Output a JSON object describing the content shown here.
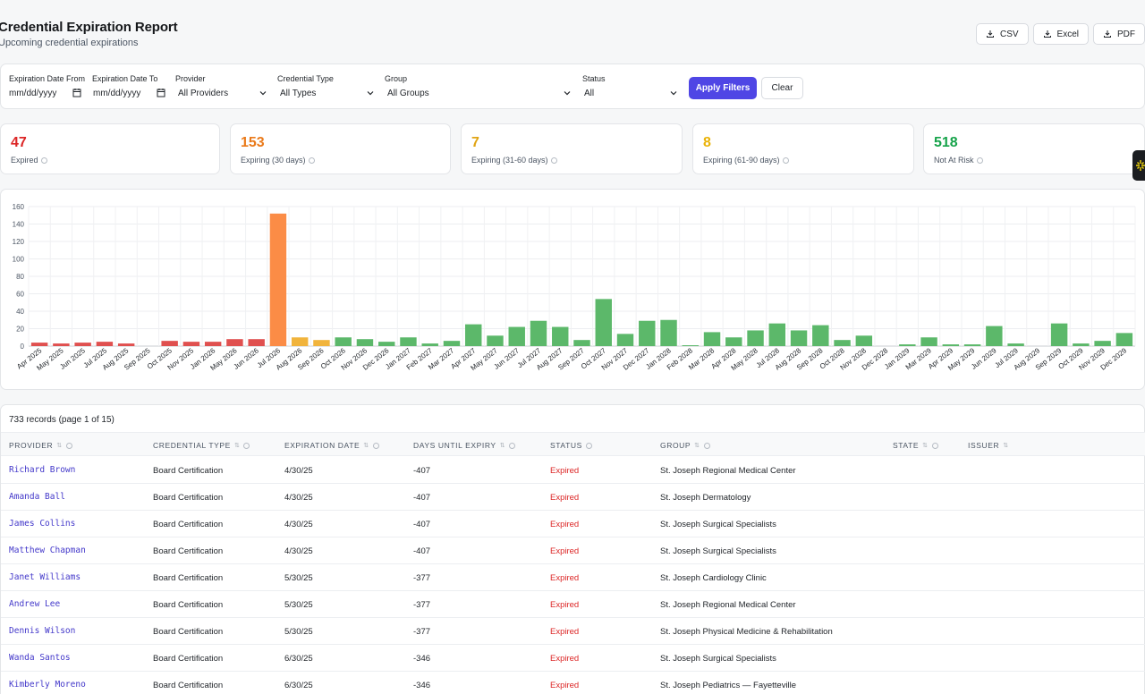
{
  "header": {
    "title": "Credential Expiration Report",
    "subtitle": "Upcoming credential expirations",
    "exports": [
      "CSV",
      "Excel",
      "PDF"
    ]
  },
  "filters": {
    "date_from": {
      "label": "Expiration Date From",
      "value": "mm/dd/yyyy"
    },
    "date_to": {
      "label": "Expiration Date To",
      "value": "mm/dd/yyyy"
    },
    "provider": {
      "label": "Provider",
      "value": "All Providers"
    },
    "credential_type": {
      "label": "Credential Type",
      "value": "All Types"
    },
    "group": {
      "label": "Group",
      "value": "All Groups"
    },
    "status": {
      "label": "Status",
      "value": "All"
    },
    "apply_label": "Apply Filters",
    "clear_label": "Clear"
  },
  "stats": [
    {
      "value": "47",
      "label": "Expired",
      "color": "#dc2626"
    },
    {
      "value": "153",
      "label": "Expiring (30 days)",
      "color": "#ea7a1a"
    },
    {
      "value": "7",
      "label": "Expiring (31-60 days)",
      "color": "#e0a412"
    },
    {
      "value": "8",
      "label": "Expiring (61-90 days)",
      "color": "#eab308"
    },
    {
      "value": "518",
      "label": "Not At Risk",
      "color": "#16a34a"
    }
  ],
  "chart_data": {
    "type": "bar",
    "title": "",
    "xlabel": "",
    "ylabel": "",
    "ylim": [
      0,
      160
    ],
    "yticks": [
      0,
      20,
      40,
      60,
      80,
      100,
      120,
      140,
      160
    ],
    "grid": true,
    "legend": "none",
    "categories": [
      "Apr 2025",
      "May 2025",
      "Jun 2025",
      "Jul 2025",
      "Aug 2025",
      "Sep 2025",
      "Oct 2025",
      "Nov 2025",
      "Jan 2026",
      "May 2026",
      "Jun 2026",
      "Jul 2026",
      "Aug 2026",
      "Sep 2026",
      "Oct 2026",
      "Nov 2026",
      "Dec 2026",
      "Jan 2027",
      "Feb 2027",
      "Mar 2027",
      "Apr 2027",
      "May 2027",
      "Jun 2027",
      "Jul 2027",
      "Aug 2027",
      "Sep 2027",
      "Oct 2027",
      "Nov 2027",
      "Dec 2027",
      "Jan 2028",
      "Feb 2028",
      "Mar 2028",
      "Apr 2028",
      "May 2028",
      "Jul 2028",
      "Aug 2028",
      "Sep 2028",
      "Oct 2028",
      "Nov 2028",
      "Dec 2028",
      "Jan 2029",
      "Mar 2029",
      "Apr 2029",
      "May 2029",
      "Jun 2029",
      "Jul 2029",
      "Aug 2029",
      "Sep 2029",
      "Oct 2029",
      "Nov 2029",
      "Dec 2029"
    ],
    "values": [
      4,
      3,
      4,
      5,
      3,
      0,
      6,
      5,
      5,
      8,
      8,
      152,
      10,
      7,
      10,
      8,
      5,
      10,
      3,
      6,
      25,
      12,
      22,
      29,
      22,
      7,
      54,
      14,
      29,
      30,
      1,
      16,
      10,
      18,
      26,
      18,
      24,
      7,
      12,
      0,
      2,
      10,
      2,
      2,
      23,
      3,
      0,
      26,
      3,
      6,
      15
    ],
    "bar_status": [
      "expired",
      "expired",
      "expired",
      "expired",
      "expired",
      "expired",
      "expired",
      "expired",
      "expired",
      "expired",
      "expired",
      "expiring-30",
      "expiring-later",
      "expiring-later",
      "ok",
      "ok",
      "ok",
      "ok",
      "ok",
      "ok",
      "ok",
      "ok",
      "ok",
      "ok",
      "ok",
      "ok",
      "ok",
      "ok",
      "ok",
      "ok",
      "ok",
      "ok",
      "ok",
      "ok",
      "ok",
      "ok",
      "ok",
      "ok",
      "ok",
      "ok",
      "ok",
      "ok",
      "ok",
      "ok",
      "ok",
      "ok",
      "ok",
      "ok",
      "ok",
      "ok",
      "ok"
    ],
    "status_colors": {
      "expired": "#e0504f",
      "expiring-30": "#fb8c46",
      "expiring-later": "#f1b43c",
      "ok": "#5cb86a"
    }
  },
  "table": {
    "records_text": "733 records (page 1 of 15)",
    "columns": [
      "PROVIDER",
      "CREDENTIAL TYPE",
      "EXPIRATION DATE",
      "DAYS UNTIL EXPIRY",
      "STATUS",
      "GROUP",
      "STATE",
      "ISSUER"
    ],
    "rows": [
      {
        "provider": "Richard Brown",
        "type": "Board Certification",
        "date": "4/30/25",
        "days": "-407",
        "status": "Expired",
        "group": "St. Joseph Regional Medical Center"
      },
      {
        "provider": "Amanda Ball",
        "type": "Board Certification",
        "date": "4/30/25",
        "days": "-407",
        "status": "Expired",
        "group": "St. Joseph Dermatology"
      },
      {
        "provider": "James Collins",
        "type": "Board Certification",
        "date": "4/30/25",
        "days": "-407",
        "status": "Expired",
        "group": "St. Joseph Surgical Specialists"
      },
      {
        "provider": "Matthew Chapman",
        "type": "Board Certification",
        "date": "4/30/25",
        "days": "-407",
        "status": "Expired",
        "group": "St. Joseph Surgical Specialists"
      },
      {
        "provider": "Janet Williams",
        "type": "Board Certification",
        "date": "5/30/25",
        "days": "-377",
        "status": "Expired",
        "group": "St. Joseph Cardiology Clinic"
      },
      {
        "provider": "Andrew Lee",
        "type": "Board Certification",
        "date": "5/30/25",
        "days": "-377",
        "status": "Expired",
        "group": "St. Joseph Regional Medical Center"
      },
      {
        "provider": "Dennis Wilson",
        "type": "Board Certification",
        "date": "5/30/25",
        "days": "-377",
        "status": "Expired",
        "group": "St. Joseph Physical Medicine & Rehabilitation"
      },
      {
        "provider": "Wanda Santos",
        "type": "Board Certification",
        "date": "6/30/25",
        "days": "-346",
        "status": "Expired",
        "group": "St. Joseph Surgical Specialists"
      },
      {
        "provider": "Kimberly Moreno",
        "type": "Board Certification",
        "date": "6/30/25",
        "days": "-346",
        "status": "Expired",
        "group": "St. Joseph Pediatrics — Fayetteville"
      }
    ]
  }
}
